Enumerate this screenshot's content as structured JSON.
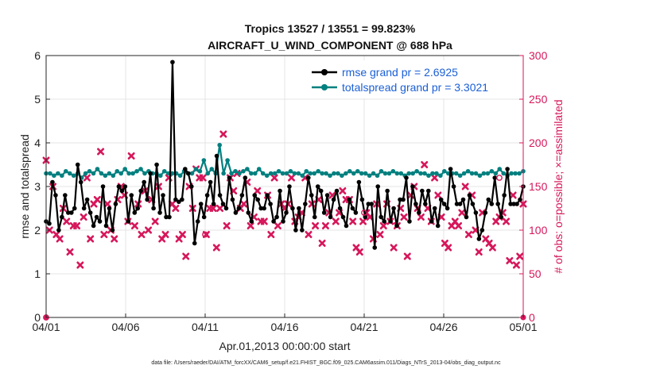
{
  "chart_data": {
    "type": "line",
    "title": "Tropics 13527 / 13551 = 99.823%",
    "subtitle": "AIRCRAFT_U_WIND_COMPONENT @ 688 hPa",
    "xlabel": "Apr.01,2013 00:00:00 start",
    "ylabel": "rmse and totalspread",
    "ylabel_right": "# of obs: o=possible; ×=assimilated",
    "footer": "data file: /Users/raeder/DAI/ATM_forcXX/CAM6_setup/f.e21.FHIST_BGC.f09_025.CAM6assim.011/Diags_NTrS_2013-04/obs_diag_output.nc",
    "xlim": [
      0,
      120
    ],
    "ylim": [
      0,
      6
    ],
    "ylim_right": [
      0,
      300
    ],
    "grid": true,
    "xticks": [
      {
        "value": 0,
        "label": "04/01"
      },
      {
        "value": 20,
        "label": "04/06"
      },
      {
        "value": 40,
        "label": "04/11"
      },
      {
        "value": 60,
        "label": "04/16"
      },
      {
        "value": 80,
        "label": "04/21"
      },
      {
        "value": 100,
        "label": "04/26"
      },
      {
        "value": 120,
        "label": "05/01"
      }
    ],
    "yticks": [
      0,
      1,
      2,
      3,
      4,
      5,
      6
    ],
    "yticks_right": [
      0,
      50,
      100,
      150,
      200,
      250,
      300
    ],
    "colors": {
      "rmse": "#000000",
      "spread": "#00807f",
      "obs": "#d6175b",
      "grid": "#e4e4e4"
    },
    "series": [
      {
        "name": "rmse grand pr = 2.6925",
        "axis": "left",
        "values": [
          2.2,
          2.15,
          3.1,
          2.8,
          2.0,
          2.3,
          2.8,
          2.4,
          2.4,
          2.5,
          3.5,
          3.1,
          2.5,
          2.7,
          2.4,
          2.1,
          2.3,
          2.2,
          3.0,
          2.1,
          2.5,
          2.0,
          2.6,
          3.0,
          2.9,
          3.0,
          2.2,
          2.8,
          2.4,
          2.5,
          2.9,
          3.1,
          2.7,
          3.3,
          2.5,
          3.5,
          2.4,
          2.8,
          2.3,
          2.3,
          5.85,
          2.7,
          2.65,
          2.7,
          3.4,
          3.3,
          3.0,
          1.7,
          2.2,
          2.6,
          2.3,
          2.8,
          3.1,
          2.6,
          3.7,
          2.8,
          2.6,
          2.5,
          3.2,
          2.7,
          2.4,
          2.5,
          2.8,
          3.2,
          2.4,
          2.2,
          2.8,
          2.7,
          2.5,
          2.5,
          2.8,
          2.6,
          2.2,
          2.3,
          2.9,
          2.2,
          2.4,
          3.0,
          2.5,
          2.0,
          2.5,
          2.0,
          2.6,
          3.2,
          2.8,
          2.3,
          3.0,
          2.9,
          2.4,
          2.8,
          2.3,
          2.7,
          2.9,
          2.5,
          2.3,
          2.1,
          2.7,
          2.5,
          2.4,
          3.1,
          2.7,
          2.3,
          2.6,
          2.6,
          1.6,
          3.0,
          2.3,
          2.2,
          2.9,
          2.2,
          2.5,
          2.1,
          2.7,
          2.7,
          3.2,
          2.2,
          3.0,
          2.6,
          2.4,
          2.9,
          2.6,
          2.9,
          2.2,
          2.5,
          2.1,
          2.7,
          2.6,
          2.5,
          3.4,
          3.0,
          2.6,
          2.6,
          2.7,
          2.3,
          2.8,
          2.6,
          2.4,
          1.8,
          2.0,
          2.4,
          2.7,
          2.6,
          3.2,
          2.6,
          2.3,
          2.8,
          3.4,
          2.6,
          2.6,
          2.6,
          2.7,
          3.0
        ]
      },
      {
        "name": "totalspread grand pr = 3.3021",
        "axis": "left",
        "values": [
          3.3,
          3.3,
          3.25,
          3.3,
          3.25,
          3.35,
          3.3,
          3.25,
          3.3,
          3.2,
          3.3,
          3.35,
          3.3,
          3.4,
          3.3,
          3.25,
          3.3,
          3.25,
          3.35,
          3.3,
          3.4,
          3.3,
          3.3,
          3.35,
          3.4,
          3.3,
          3.35,
          3.3,
          3.3,
          3.25,
          3.35,
          3.3,
          3.3,
          3.3,
          3.25,
          3.35,
          3.3,
          3.3,
          3.4,
          3.35,
          3.6,
          3.3,
          3.4,
          3.3,
          3.95,
          3.3,
          3.6,
          3.3,
          3.35,
          3.3,
          3.35,
          3.4,
          3.3,
          3.3,
          3.4,
          3.3,
          3.25,
          3.3,
          3.3,
          3.35,
          3.3,
          3.3,
          3.35,
          3.3,
          3.3,
          3.25,
          3.35,
          3.3,
          3.3,
          3.35,
          3.3,
          3.3,
          3.25,
          3.3,
          3.3,
          3.25,
          3.3,
          3.35,
          3.3,
          3.35,
          3.3,
          3.3,
          3.25,
          3.3,
          3.25,
          3.35,
          3.3,
          3.3,
          3.35,
          3.3,
          3.3,
          3.25,
          3.3,
          3.3,
          3.35,
          3.3,
          3.3,
          3.25,
          3.3,
          3.3,
          3.25,
          3.35,
          3.3,
          3.3,
          3.3,
          3.25,
          3.3,
          3.35,
          3.3,
          3.3,
          3.25,
          3.3,
          3.3,
          3.35,
          3.3,
          3.4,
          3.3,
          3.25,
          3.3,
          3.3,
          3.3,
          3.35
        ]
      },
      {
        "name": "obs assimilated",
        "axis": "right",
        "marker": "x",
        "values": [
          180,
          100,
          150,
          95,
          90,
          125,
          110,
          75,
          105,
          105,
          60,
          115,
          160,
          90,
          130,
          135,
          190,
          95,
          130,
          100,
          90,
          135,
          150,
          140,
          110,
          185,
          105,
          130,
          95,
          145,
          100,
          135,
          110,
          150,
          90,
          95,
          160,
          130,
          125,
          90,
          95,
          70,
          150,
          125,
          170,
          160,
          160,
          95,
          125,
          125,
          80,
          125,
          210,
          105,
          160,
          145,
          165,
          125,
          130,
          155,
          105,
          115,
          145,
          110,
          110,
          140,
          95,
          160,
          105,
          130,
          125,
          130,
          160,
          110,
          115,
          120,
          160,
          95,
          130,
          105,
          135,
          85,
          105,
          120,
          140,
          110,
          120,
          145,
          135,
          135,
          110,
          80,
          75,
          110,
          120,
          115,
          90,
          130,
          95,
          105,
          130,
          110,
          80,
          105,
          125,
          115,
          70,
          140,
          150,
          125,
          115,
          175,
          125,
          110,
          160,
          140,
          115,
          85,
          80,
          105,
          110,
          105,
          120,
          150,
          95,
          140,
          100,
          75,
          120,
          90,
          85,
          80,
          110,
          115,
          120,
          110,
          65,
          140,
          60,
          70,
          130
        ]
      },
      {
        "name": "obs possible",
        "axis": "right",
        "marker": "o",
        "values": [
          0,
          95,
          120,
          160
        ]
      }
    ]
  }
}
